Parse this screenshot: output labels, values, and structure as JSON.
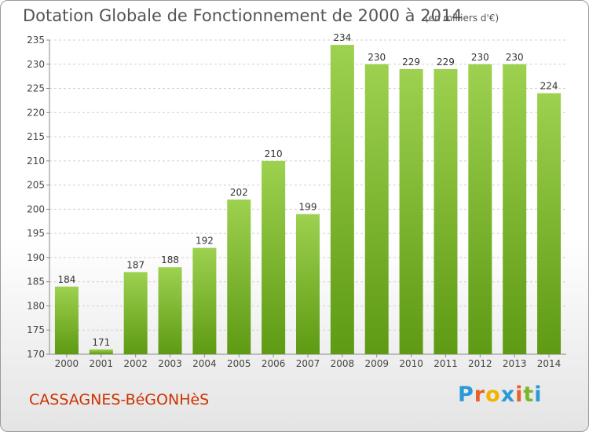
{
  "header": {
    "title": "Dotation Globale de Fonctionnement de 2000 à 2014",
    "subtitle": "(en milliers d'€)"
  },
  "footer": {
    "place": "CASSAGNES-BéGONHèS",
    "logo": "Proxiti"
  },
  "colors": {
    "bar_top": "#9dd14f",
    "bar_bottom": "#5e9a13",
    "place_text": "#cc3300",
    "logo_letters": [
      "#2a9ad6",
      "#e8612b",
      "#f0b400",
      "#2a9ad6",
      "#e8612b",
      "#7ab52b",
      "#2a9ad6"
    ]
  },
  "chart_data": {
    "type": "bar",
    "title": "Dotation Globale de Fonctionnement de 2000 à 2014",
    "subtitle": "(en milliers d'€)",
    "categories": [
      "2000",
      "2001",
      "2002",
      "2003",
      "2004",
      "2005",
      "2006",
      "2007",
      "2008",
      "2009",
      "2010",
      "2011",
      "2012",
      "2013",
      "2014"
    ],
    "values": [
      184,
      171,
      187,
      188,
      192,
      202,
      210,
      199,
      234,
      230,
      229,
      229,
      230,
      230,
      224
    ],
    "ylim": [
      170,
      235
    ],
    "yticks": [
      170,
      175,
      180,
      185,
      190,
      195,
      200,
      205,
      210,
      215,
      220,
      225,
      230,
      235
    ],
    "grid": true,
    "legend": "none"
  }
}
